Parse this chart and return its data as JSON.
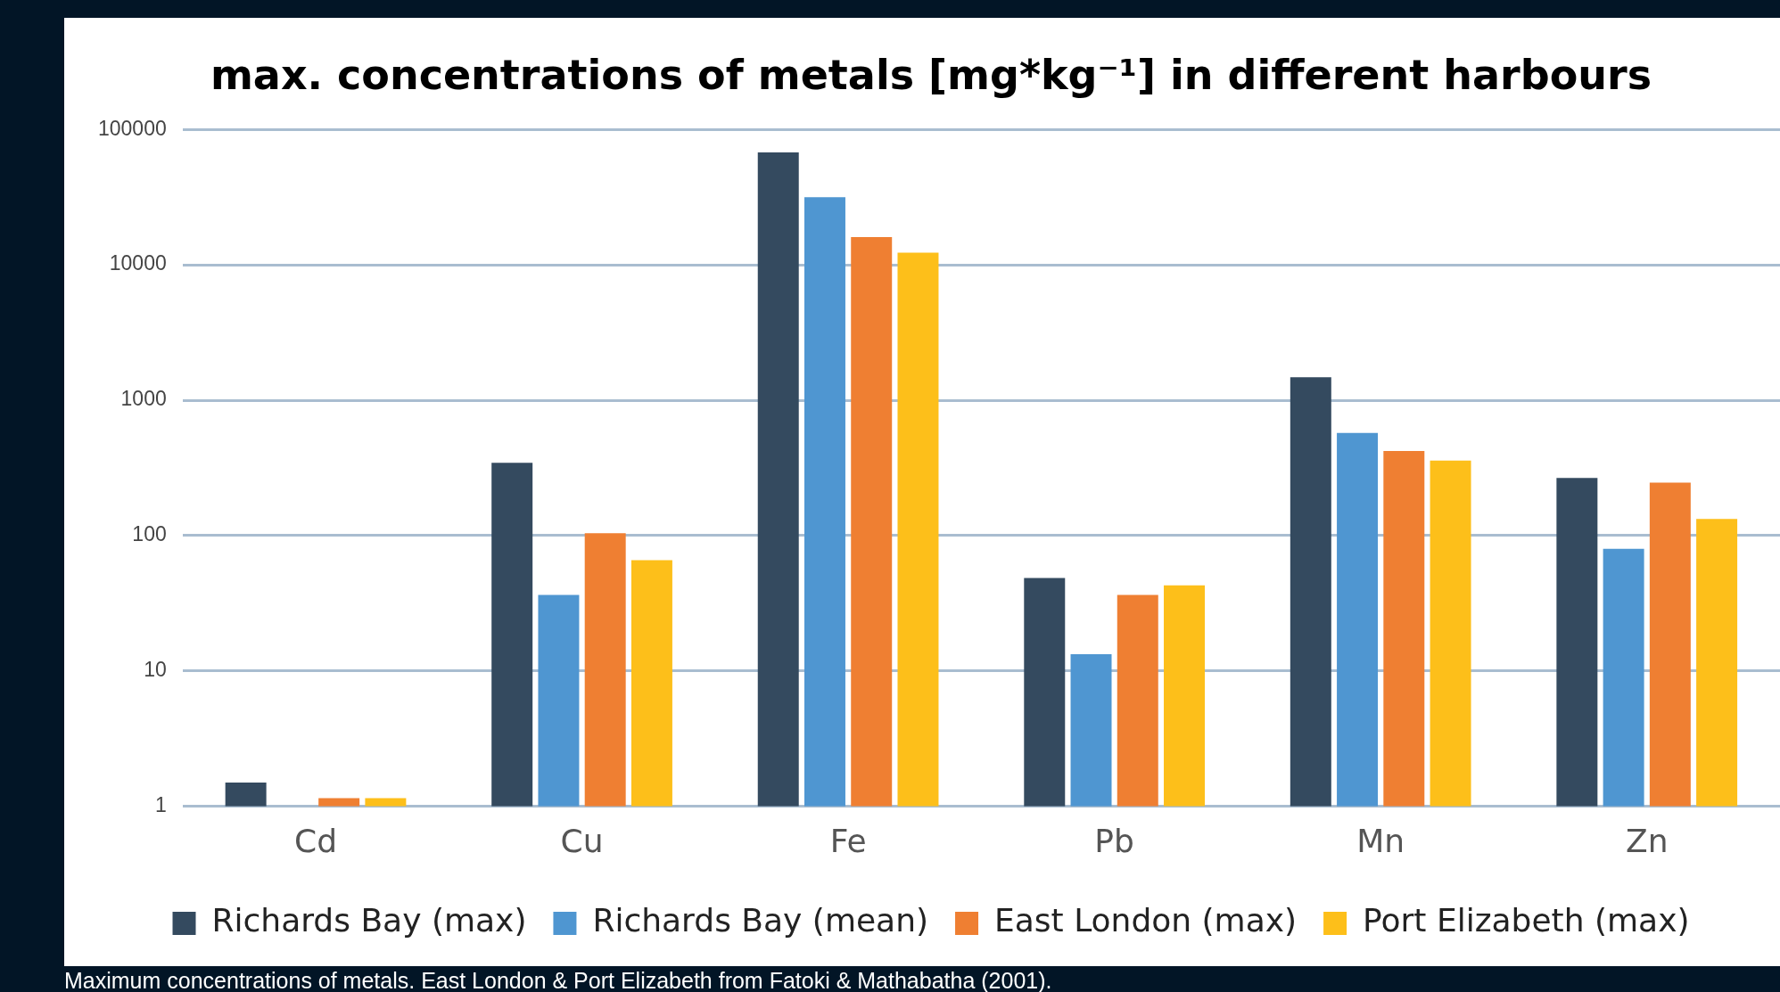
{
  "chart_data": {
    "type": "bar",
    "title": "max. concentrations of metals [mg*kg⁻¹] in different harbours",
    "categories": [
      "Cd",
      "Cu",
      "Fe",
      "Pb",
      "Mn",
      "Zn"
    ],
    "series": [
      {
        "name": "Richards Bay (max)",
        "color": "#344a5f",
        "values": [
          1.5,
          345,
          67600,
          48.6,
          1480,
          267
        ]
      },
      {
        "name": "Richards Bay (mean)",
        "color": "#4f96d1",
        "values": [
          null,
          36.5,
          31600,
          13.3,
          574,
          80
        ]
      },
      {
        "name": "East London (max)",
        "color": "#ef7f32",
        "values": [
          1.15,
          104,
          16000,
          36.5,
          422,
          246
        ]
      },
      {
        "name": "Port Elizabeth (max)",
        "color": "#fdbf1a",
        "values": [
          1.15,
          66,
          12300,
          43,
          358,
          133
        ]
      }
    ],
    "ylim": [
      1,
      100000
    ],
    "yticks": [
      1,
      10,
      100,
      1000,
      10000,
      100000
    ],
    "log": "y",
    "grid": "y",
    "legend": "bottom",
    "annotations": [
      "Maximum concentrations of metals. East London & Port Elizabeth from Fatoki & Mathabatha (2001)."
    ]
  }
}
